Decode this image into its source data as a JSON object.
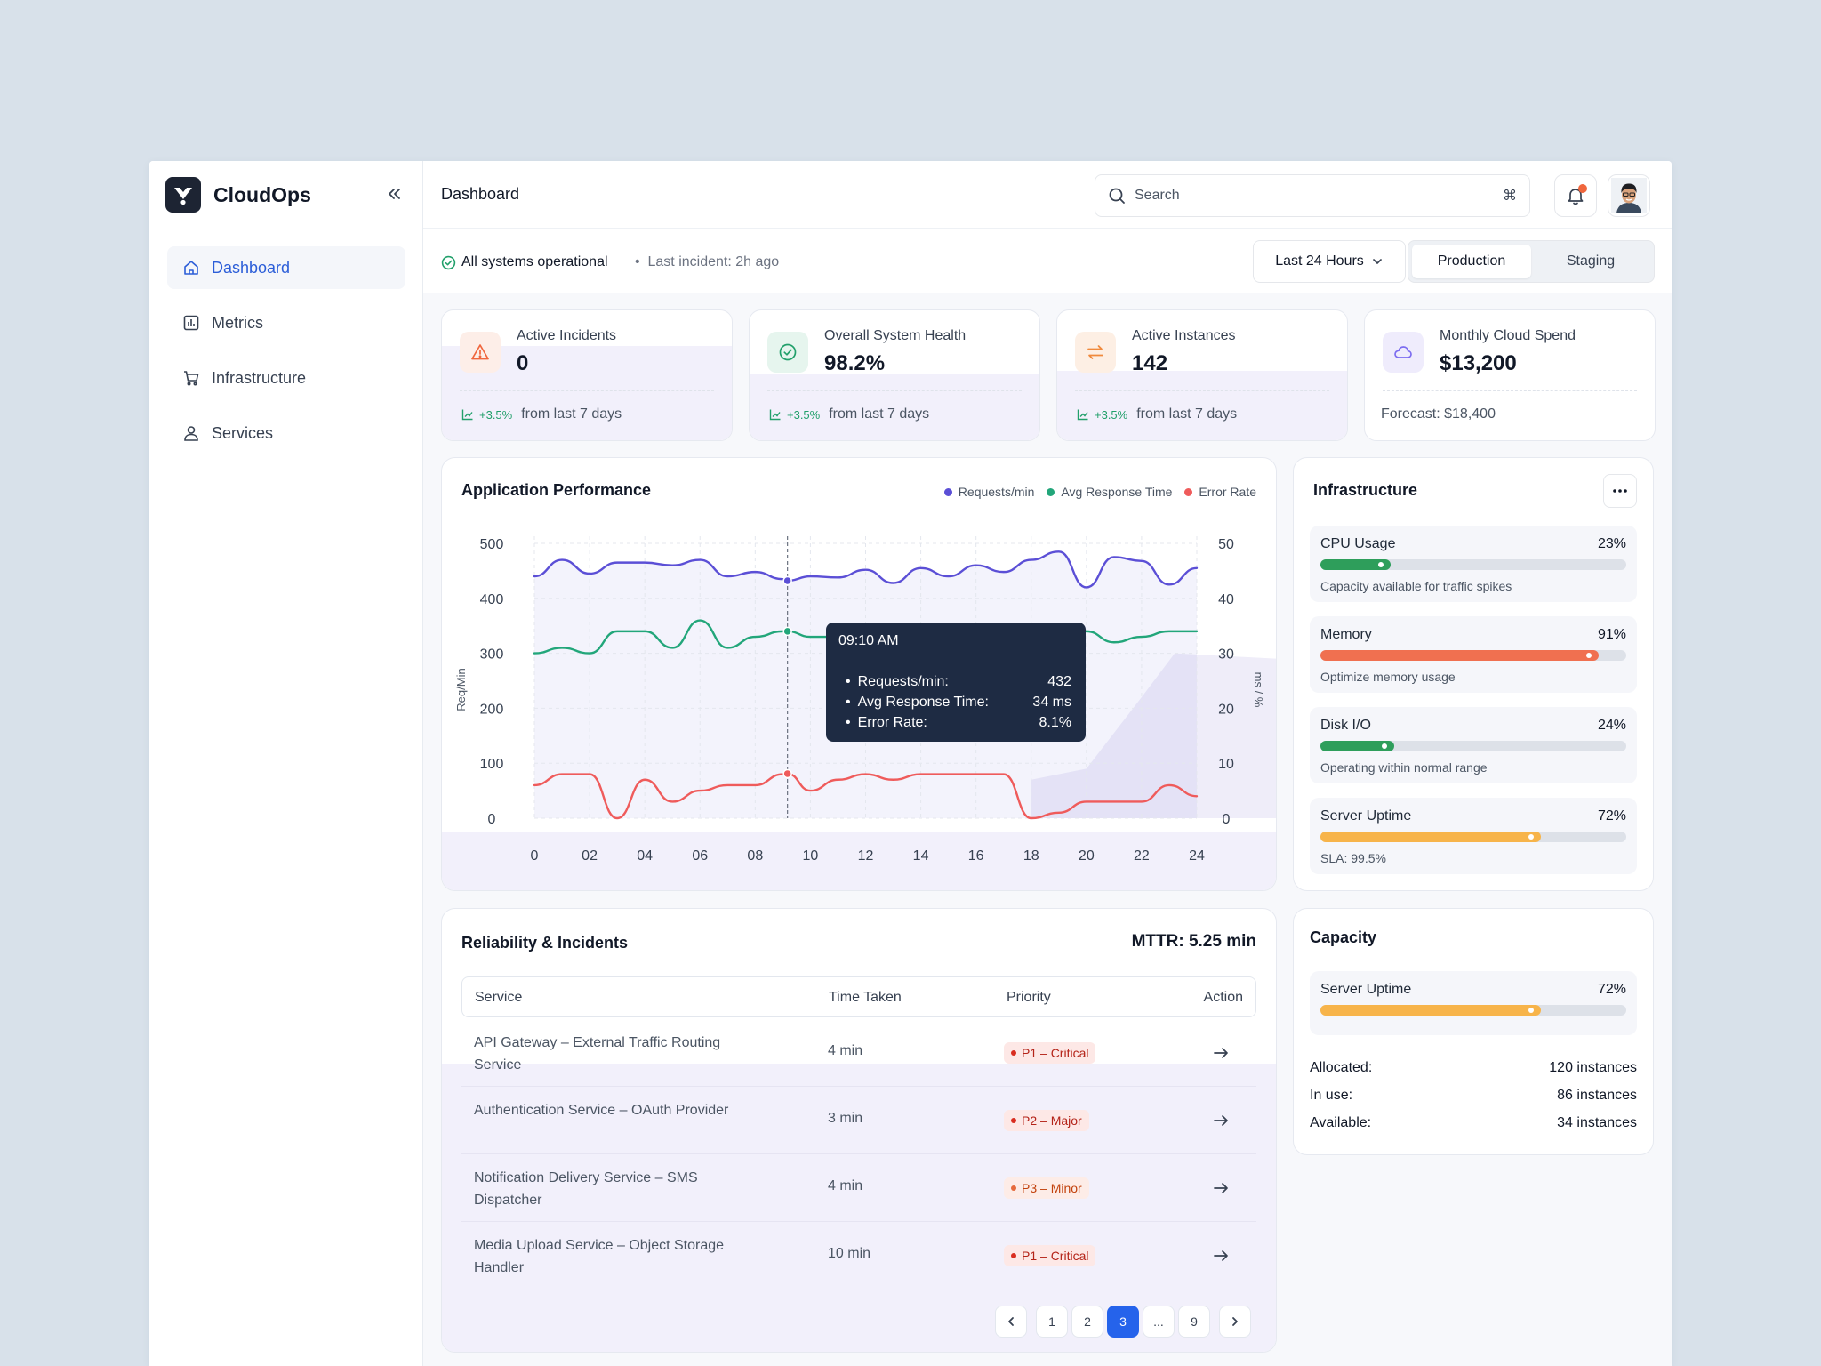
{
  "app": {
    "name": "CloudOps"
  },
  "sidebar": {
    "items": [
      {
        "label": "Dashboard",
        "icon": "home-icon",
        "active": true
      },
      {
        "label": "Metrics",
        "icon": "bar-chart-icon"
      },
      {
        "label": "Infrastructure",
        "icon": "cart-icon"
      },
      {
        "label": "Services",
        "icon": "user-icon"
      }
    ]
  },
  "header": {
    "title": "Dashboard",
    "search_placeholder": "Search",
    "search_shortcut": "⌘"
  },
  "status": {
    "text": "All systems operational",
    "last_incident": "Last incident: 2h ago",
    "range": "Last 24 Hours",
    "environments": [
      "Production",
      "Staging"
    ],
    "active_env": "Production"
  },
  "kpis": [
    {
      "label": "Active Incidents",
      "value": "0",
      "change": "+3.5%",
      "note": "from last 7 days",
      "icon": "warning-icon",
      "color": "#f0663d"
    },
    {
      "label": "Overall System Health",
      "value": "98.2%",
      "change": "+3.5%",
      "note": "from last 7 days",
      "icon": "check-circle-icon",
      "color": "#22a06b"
    },
    {
      "label": "Active Instances",
      "value": "142",
      "change": "+3.5%",
      "note": "from last 7 days",
      "icon": "swap-icon",
      "color": "#f08a3d"
    },
    {
      "label": "Monthly Cloud Spend",
      "value": "$13,200",
      "note": "Forecast: $18,400",
      "icon": "cloud-icon",
      "color": "#7c6cf0"
    }
  ],
  "performance": {
    "title": "Application Performance",
    "legend": [
      {
        "name": "Requests/min",
        "color": "#5b4fd6"
      },
      {
        "name": "Avg Response Time",
        "color": "#22a67a"
      },
      {
        "name": "Error Rate",
        "color": "#ef5b5b"
      }
    ],
    "left_axis_label": "Req/Min",
    "right_axis_label": "ms / %",
    "tooltip": {
      "time": "09:10 AM",
      "rows": [
        {
          "label": "Requests/min:",
          "value": "432"
        },
        {
          "label": "Avg Response Time:",
          "value": "34 ms"
        },
        {
          "label": "Error Rate:",
          "value": "8.1%"
        }
      ]
    }
  },
  "chart_data": {
    "type": "line",
    "x_ticks": [
      "0",
      "02",
      "04",
      "06",
      "08",
      "10",
      "12",
      "14",
      "16",
      "18",
      "20",
      "22",
      "24"
    ],
    "y_ticks_left": [
      0,
      100,
      200,
      300,
      400,
      500
    ],
    "y_ticks_right": [
      0,
      10,
      20,
      30,
      40,
      50
    ],
    "ylim_left": [
      0,
      500
    ],
    "ylim_right": [
      0,
      50
    ],
    "xlim": [
      0,
      24
    ],
    "x": [
      0,
      1,
      2,
      3,
      4,
      5,
      6,
      7,
      8,
      9,
      9.17,
      10,
      11,
      12,
      13,
      14,
      15,
      16,
      17,
      18,
      19,
      20,
      21,
      22,
      23,
      24
    ],
    "series": [
      {
        "name": "Requests/min",
        "axis": "left",
        "color": "#5b4fd6",
        "values": [
          440,
          470,
          445,
          465,
          465,
          460,
          470,
          440,
          448,
          435,
          432,
          440,
          438,
          452,
          428,
          455,
          440,
          460,
          448,
          470,
          485,
          420,
          475,
          468,
          425,
          455
        ]
      },
      {
        "name": "Avg Response Time",
        "axis": "right",
        "color": "#22a67a",
        "values": [
          30,
          31,
          30,
          34,
          34,
          31,
          36,
          31,
          33,
          34,
          34,
          33,
          33,
          34,
          34,
          33,
          33,
          34,
          34,
          33,
          32,
          34,
          32,
          33,
          34,
          34
        ]
      },
      {
        "name": "Error Rate",
        "axis": "right",
        "color": "#ef5b5b",
        "values": [
          6,
          8,
          8,
          0,
          7,
          3,
          5,
          6,
          6,
          8,
          8.1,
          5,
          7,
          8,
          7,
          8,
          8,
          8,
          8,
          0,
          1,
          3,
          3,
          3,
          6,
          4
        ]
      }
    ],
    "highlight_x": 9.17,
    "grid": true
  },
  "infrastructure": {
    "title": "Infrastructure",
    "resources": [
      {
        "label": "CPU Usage",
        "value": "23%",
        "percent": 23,
        "note": "Capacity available for traffic spikes",
        "color": "#2e9e5b"
      },
      {
        "label": "Memory",
        "value": "91%",
        "percent": 91,
        "note": "Optimize memory usage",
        "color": "#f07050"
      },
      {
        "label": "Disk I/O",
        "value": "24%",
        "percent": 24,
        "note": "Operating within normal range",
        "color": "#2e9e5b"
      },
      {
        "label": "Server Uptime",
        "value": "72%",
        "percent": 72,
        "note": "SLA: 99.5%",
        "color": "#f7b44a"
      }
    ]
  },
  "reliability": {
    "title": "Reliability & Incidents",
    "mttr": "MTTR: 5.25 min",
    "columns": [
      "Service",
      "Time Taken",
      "Priority",
      "Action"
    ],
    "rows": [
      {
        "service": "API Gateway – External Traffic Routing Service",
        "time": "4 min",
        "priority": "P1 – Critical",
        "level": "critical"
      },
      {
        "service": "Authentication Service – OAuth Provider",
        "time": "3 min",
        "priority": "P2 – Major",
        "level": "major"
      },
      {
        "service": "Notification Delivery Service – SMS Dispatcher",
        "time": "4 min",
        "priority": "P3 – Minor",
        "level": "minor"
      },
      {
        "service": "Media Upload Service – Object Storage Handler",
        "time": "10 min",
        "priority": "P1 – Critical",
        "level": "critical"
      }
    ],
    "pagination": {
      "pages": [
        "1",
        "2",
        "3",
        "...",
        "9"
      ],
      "current": "3"
    }
  },
  "capacity": {
    "title": "Capacity",
    "metric": {
      "label": "Server Uptime",
      "value": "72%",
      "percent": 72,
      "color": "#f7b44a"
    },
    "stats": [
      {
        "label": "Allocated:",
        "value": "120 instances"
      },
      {
        "label": "In use:",
        "value": "86 instances"
      },
      {
        "label": "Available:",
        "value": "34 instances"
      }
    ]
  }
}
